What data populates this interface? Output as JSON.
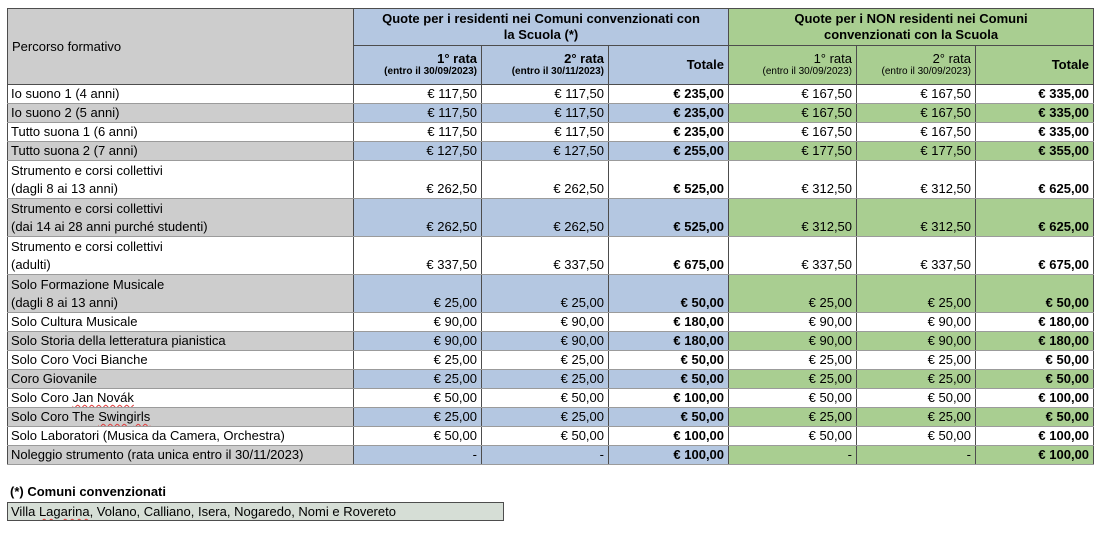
{
  "colors": {
    "resident_accent": "#B4C7E1",
    "non_resident_accent": "#A9CE91",
    "shaded_row_gray": "#CDCDCD",
    "footnote_box_bg": "#D6DED6",
    "spellcheck_red": "#E03A3A"
  },
  "table": {
    "corner_header": "Percorso formativo",
    "groups": [
      {
        "title": "Quote per i residenti nei Comuni convenzionati con\nla Scuola (*)"
      },
      {
        "title": "Quote per i NON residenti nei Comuni\nconvenzionati con la Scuola"
      }
    ],
    "subheaders": [
      {
        "title": "1° rata",
        "deadline": "(entro il 30/09/2023)"
      },
      {
        "title": "2° rata",
        "deadline": "(entro il 30/11/2023)"
      },
      {
        "total": "Totale"
      },
      {
        "title": "1° rata",
        "deadline": "(entro il 30/09/2023)"
      },
      {
        "title": "2° rata",
        "deadline": "(entro il 30/09/2023)"
      },
      {
        "total": "Totale"
      }
    ],
    "rows": [
      {
        "label": "Io suono 1 (4 anni)",
        "shaded": false,
        "double": false,
        "values": [
          "€ 117,50",
          "€ 117,50",
          "€ 235,00",
          "€ 167,50",
          "€ 167,50",
          "€ 335,00"
        ]
      },
      {
        "label": "Io suono 2 (5 anni)",
        "shaded": true,
        "double": false,
        "values": [
          "€ 117,50",
          "€ 117,50",
          "€ 235,00",
          "€ 167,50",
          "€ 167,50",
          "€ 335,00"
        ]
      },
      {
        "label": "Tutto suona 1 (6 anni)",
        "shaded": false,
        "double": false,
        "values": [
          "€ 117,50",
          "€ 117,50",
          "€ 235,00",
          "€ 167,50",
          "€ 167,50",
          "€ 335,00"
        ]
      },
      {
        "label": "Tutto suona 2 (7 anni)",
        "shaded": true,
        "double": false,
        "values": [
          "€ 127,50",
          "€ 127,50",
          "€ 255,00",
          "€ 177,50",
          "€ 177,50",
          "€ 355,00"
        ]
      },
      {
        "label": "Strumento e corsi collettivi\n(dagli 8 ai 13 anni)",
        "shaded": false,
        "double": true,
        "values": [
          "€ 262,50",
          "€ 262,50",
          "€ 525,00",
          "€ 312,50",
          "€ 312,50",
          "€ 625,00"
        ]
      },
      {
        "label": "Strumento e corsi collettivi\n(dai 14 ai 28 anni purché studenti)",
        "shaded": true,
        "double": true,
        "values": [
          "€ 262,50",
          "€ 262,50",
          "€ 525,00",
          "€ 312,50",
          "€ 312,50",
          "€ 625,00"
        ]
      },
      {
        "label": "Strumento e corsi collettivi\n(adulti)",
        "shaded": false,
        "double": true,
        "values": [
          "€ 337,50",
          "€ 337,50",
          "€ 675,00",
          "€ 337,50",
          "€ 337,50",
          "€ 675,00"
        ]
      },
      {
        "label": "Solo Formazione Musicale\n(dagli 8 ai 13 anni)",
        "shaded": true,
        "double": true,
        "values": [
          "€ 25,00",
          "€ 25,00",
          "€ 50,00",
          "€ 25,00",
          "€ 25,00",
          "€ 50,00"
        ]
      },
      {
        "label": "Solo Cultura Musicale",
        "shaded": false,
        "double": false,
        "values": [
          "€ 90,00",
          "€ 90,00",
          "€ 180,00",
          "€ 90,00",
          "€ 90,00",
          "€ 180,00"
        ]
      },
      {
        "label": "Solo Storia della letteratura pianistica",
        "shaded": true,
        "double": false,
        "values": [
          "€ 90,00",
          "€ 90,00",
          "€ 180,00",
          "€ 90,00",
          "€ 90,00",
          "€ 180,00"
        ]
      },
      {
        "label": "Solo Coro Voci Bianche",
        "shaded": false,
        "double": false,
        "values": [
          "€ 25,00",
          "€ 25,00",
          "€ 50,00",
          "€ 25,00",
          "€ 25,00",
          "€ 50,00"
        ]
      },
      {
        "label": "Coro Giovanile",
        "shaded": true,
        "double": false,
        "values": [
          "€ 25,00",
          "€ 25,00",
          "€ 50,00",
          "€ 25,00",
          "€ 25,00",
          "€ 50,00"
        ]
      },
      {
        "label": "Solo Coro Jan Novák",
        "shaded": false,
        "double": false,
        "values": [
          "€ 50,00",
          "€ 50,00",
          "€ 100,00",
          "€ 50,00",
          "€ 50,00",
          "€ 100,00"
        ]
      },
      {
        "label": "Solo Coro The Swingirls",
        "shaded": true,
        "double": false,
        "values": [
          "€ 25,00",
          "€ 25,00",
          "€ 50,00",
          "€ 25,00",
          "€ 25,00",
          "€ 50,00"
        ]
      },
      {
        "label": "Solo Laboratori (Musica da Camera, Orchestra)",
        "shaded": false,
        "double": false,
        "values": [
          "€ 50,00",
          "€ 50,00",
          "€ 100,00",
          "€ 50,00",
          "€ 50,00",
          "€ 100,00"
        ]
      },
      {
        "label": "Noleggio strumento (rata unica entro il 30/11/2023)",
        "shaded": true,
        "double": false,
        "values": [
          "-",
          "-",
          "€ 100,00",
          "-",
          "-",
          "€ 100,00"
        ]
      }
    ]
  },
  "footnote": {
    "heading": "(*) Comuni convenzionati",
    "municipalities": "Villa Lagarina, Volano, Calliano, Isera, Nogaredo, Nomi e Rovereto"
  },
  "spellcheck_words": [
    "Jan Novák",
    "Swingirls",
    "Lagarina"
  ]
}
